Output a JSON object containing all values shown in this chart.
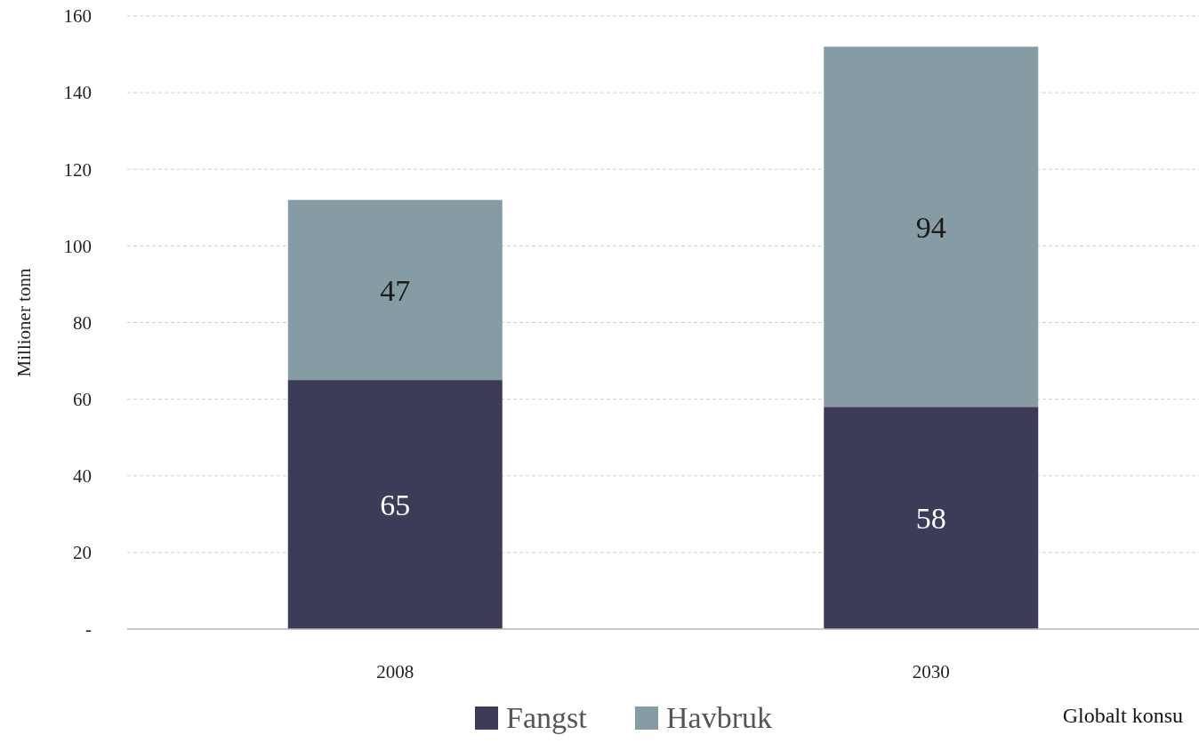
{
  "chart_data": {
    "type": "bar",
    "stacked": true,
    "ylabel": "Millioner tonn",
    "categories": [
      "2008",
      "2030"
    ],
    "series": [
      {
        "name": "Fangst",
        "color": "#3c3c58",
        "values": [
          65,
          58
        ]
      },
      {
        "name": "Havbruk",
        "color": "#869ca4",
        "values": [
          47,
          94
        ]
      }
    ],
    "ylim": [
      0,
      160
    ],
    "yticks": [
      {
        "value": 0,
        "label": "-"
      },
      20,
      40,
      60,
      80,
      100,
      120,
      140,
      160
    ],
    "grid": "y",
    "legend": "bottom",
    "data_labels": true,
    "annotations": [
      "Globalt konsu"
    ]
  }
}
